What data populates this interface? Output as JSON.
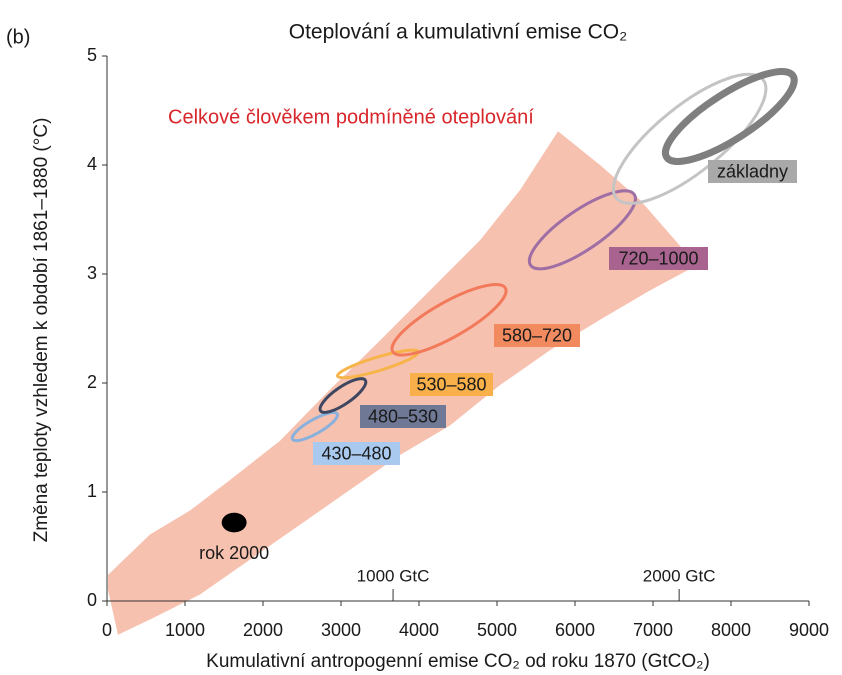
{
  "chart_data": {
    "type": "ellipse-plume",
    "panel_label": "(b)",
    "title": "Oteplování a kumulativní emise CO₂",
    "x_label": "Kumulativní antropogenní emise CO₂ od roku 1870  (GtCO₂)",
    "y_label": "Změna teploty vzhledem k období 1861–1880 (°C)",
    "xlim": [
      0,
      9000
    ],
    "xticks": [
      0,
      1000,
      2000,
      3000,
      4000,
      5000,
      6000,
      7000,
      8000,
      9000
    ],
    "ylim": [
      0,
      5
    ],
    "yticks": [
      0,
      1,
      2,
      3,
      4,
      5
    ],
    "x2lim": [
      0,
      2454
    ],
    "x2ticks": [
      {
        "value": 1000,
        "label": "1000 GtC"
      },
      {
        "value": 2000,
        "label": "2000 GtC"
      }
    ],
    "plume": {
      "name": "Celkové člověkem podmíněné oteplování",
      "color": "#f7c1b0",
      "label_color": "#d9262b",
      "x": [
        13,
        551,
        1064,
        1577,
        2218,
        2859,
        3500,
        4141,
        4782,
        5295,
        5782,
        6321,
        6833,
        7564,
        6962,
        6321,
        5679,
        5038,
        4397,
        3756,
        3115,
        2474,
        1833,
        1192,
        551,
        141,
        13
      ],
      "y": [
        0.24,
        0.61,
        0.83,
        1.11,
        1.47,
        1.94,
        2.39,
        2.85,
        3.31,
        3.77,
        4.31,
        4.0,
        3.68,
        3.08,
        2.85,
        2.58,
        2.3,
        1.98,
        1.61,
        1.34,
        1.02,
        0.7,
        0.38,
        0.06,
        -0.17,
        -0.31,
        0.1
      ]
    },
    "series": [
      {
        "name": "430–480",
        "color": "#8ab0dc",
        "box_color": "#a9c9ee",
        "x": [
          2370,
          2960
        ],
        "y": [
          1.48,
          1.72
        ]
      },
      {
        "name": "480–530",
        "color": "#3f4660",
        "box_color": "#6f7894",
        "x": [
          2730,
          3320
        ],
        "y": [
          1.74,
          2.03
        ]
      },
      {
        "name": "530–580",
        "color": "#f7b44a",
        "box_color": "#f9b04a",
        "x": [
          2940,
          4010
        ],
        "y": [
          2.06,
          2.29
        ]
      },
      {
        "name": "580–720",
        "color": "#f27a5a",
        "box_color": "#f28a60",
        "x": [
          3640,
          5130
        ],
        "y": [
          2.28,
          2.88
        ]
      },
      {
        "name": "720–1000",
        "color": "#9e6ea4",
        "box_color": "#a8638e",
        "x": [
          5410,
          6780
        ],
        "y": [
          3.07,
          3.74
        ]
      },
      {
        "name": "základny",
        "color": "#c4c4c4",
        "box_color": "#a9a9a9",
        "x": [
          6500,
          8440
        ],
        "y": [
          3.68,
          4.8
        ]
      },
      {
        "name": "základny",
        "color": "#7f7f7f",
        "box_color": "#a9a9a9",
        "x": [
          7150,
          8820
        ],
        "y": [
          4.06,
          4.83
        ]
      },
      {
        "name": "rok 2000",
        "color": "#000000",
        "x": [
          1470,
          1790
        ],
        "y": [
          0.63,
          0.81
        ]
      }
    ]
  }
}
